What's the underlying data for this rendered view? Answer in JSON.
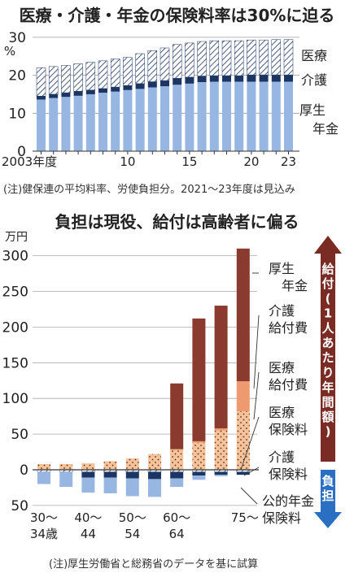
{
  "top": {
    "title": "医療・介護・年金の保険料率は30%に迫る",
    "note": "(注)健保連の平均料率、労使負担分。2021〜23年度は見込み"
  },
  "bottom": {
    "title": "負担は現役、給付は高齢者に偏る",
    "note": "(注)厚生労働省と総務省のデータを基に試算",
    "arrow_up_label": "給付(1人あたり年間額)",
    "arrow_down_label": "負担"
  },
  "colors": {
    "pension_blue": "#97b7e2",
    "nursing_navy": "#1c3563",
    "pension_benefit": "#8a3a2e",
    "nursing_benefit": "#ee9a6e",
    "medical_benefit": "#f5c39a",
    "arrow_up": "#7a2c24",
    "arrow_down": "#2b6fc2"
  },
  "chart_data": [
    {
      "type": "bar",
      "stacked": true,
      "x": [
        2003,
        2004,
        2005,
        2006,
        2007,
        2008,
        2009,
        2010,
        2011,
        2012,
        2013,
        2014,
        2015,
        2016,
        2017,
        2018,
        2019,
        2020,
        2021,
        2022,
        2023
      ],
      "tick_labels": {
        "2003": "2003年度",
        "2010": "10",
        "2015": "15",
        "2020": "20",
        "2023": "23"
      },
      "ylabel": "%",
      "ylim": [
        0,
        30
      ],
      "yticks": [
        0,
        10,
        20,
        30
      ],
      "series": [
        {
          "name": "厚生年金",
          "values": [
            13.6,
            14.0,
            14.3,
            14.6,
            15.0,
            15.4,
            15.7,
            16.1,
            16.4,
            16.8,
            17.1,
            17.5,
            17.8,
            18.2,
            18.3,
            18.3,
            18.3,
            18.3,
            18.3,
            18.3,
            18.3
          ]
        },
        {
          "name": "介護",
          "values": [
            0.9,
            1.0,
            1.1,
            1.2,
            1.1,
            1.1,
            1.2,
            1.2,
            1.4,
            1.5,
            1.5,
            1.7,
            1.7,
            1.6,
            1.6,
            1.6,
            1.6,
            1.8,
            1.8,
            1.8,
            1.8
          ]
        },
        {
          "name": "医療",
          "values": [
            7.5,
            7.3,
            7.2,
            7.2,
            7.3,
            7.3,
            7.4,
            7.4,
            7.9,
            8.2,
            8.6,
            8.9,
            9.0,
            9.1,
            9.2,
            9.2,
            9.2,
            9.2,
            9.2,
            9.3,
            9.3
          ]
        }
      ]
    },
    {
      "type": "bar",
      "stacked": true,
      "categories": [
        "30〜34歳",
        "35〜39歳",
        "40〜44歳",
        "45〜49歳",
        "50〜54歳",
        "55〜59歳",
        "60〜64歳",
        "65〜69歳",
        "70〜74歳",
        "75歳〜"
      ],
      "tick_labels": [
        [
          "30〜",
          "34歳"
        ],
        [
          "",
          ""
        ],
        [
          "40〜",
          "44"
        ],
        [
          "",
          ""
        ],
        [
          "50〜",
          "54"
        ],
        [
          "",
          ""
        ],
        [
          "60〜",
          "64"
        ],
        [
          "",
          ""
        ],
        [
          "",
          ""
        ],
        [
          "75〜",
          ""
        ]
      ],
      "ylabel": "万円",
      "ylim": [
        -50,
        310
      ],
      "yticks": [
        -50,
        0,
        50,
        100,
        150,
        200,
        250,
        300
      ],
      "ytick_labels": [
        "50",
        "0",
        "50",
        "100",
        "150",
        "200",
        "250",
        "300"
      ],
      "benefits": [
        {
          "name": "医療給付費",
          "values": [
            8,
            8,
            9,
            12,
            16,
            22,
            28,
            38,
            55,
            82
          ]
        },
        {
          "name": "介護給付費",
          "values": [
            0,
            0,
            0,
            0,
            0,
            0,
            1,
            2,
            3,
            42
          ]
        },
        {
          "name": "厚生年金",
          "values": [
            0,
            0,
            0,
            0,
            0,
            0,
            92,
            172,
            172,
            186
          ]
        }
      ],
      "burdens": [
        {
          "name": "医療保険料",
          "values": [
            -3,
            -3,
            -3,
            -3,
            -3,
            -3,
            -3,
            -3,
            -3,
            -3
          ]
        },
        {
          "name": "介護保険料",
          "values": [
            0,
            0,
            -8,
            -8,
            -9,
            -10,
            -9,
            -5,
            -4,
            -4
          ]
        },
        {
          "name": "公的年金保険料",
          "values": [
            -17,
            -21,
            -21,
            -22,
            -25,
            -25,
            -12,
            -6,
            -2,
            0
          ]
        }
      ],
      "legend_labels": [
        [
          "厚生",
          "年金"
        ],
        [
          "介護",
          "給付費"
        ],
        [
          "医療",
          "給付費"
        ],
        [
          "医療",
          "保険料"
        ],
        [
          "介護",
          "保険料"
        ],
        [
          "公的年金",
          "保険料"
        ]
      ]
    }
  ]
}
